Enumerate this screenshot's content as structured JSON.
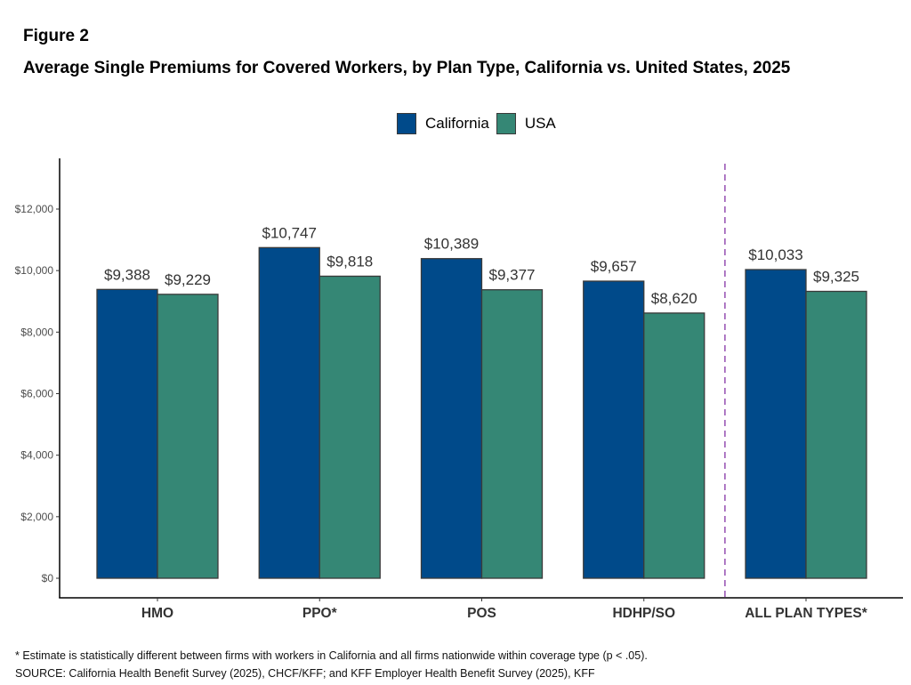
{
  "figure_label": "Figure 2",
  "title": "Average Single Premiums for Covered Workers, by Plan Type, California vs. United States, 2025",
  "footnote": "* Estimate is statistically different between firms with workers in California and all firms nationwide within coverage type (p < .05).",
  "source": "SOURCE: California Health Benefit Survey (2025), CHCF/KFF; and KFF Employer Health Benefit Survey (2025), KFF",
  "chart_data": {
    "type": "bar",
    "title": "Average Single Premiums for Covered Workers, by Plan Type, California vs. United States, 2025",
    "xlabel": "",
    "ylabel": "",
    "categories": [
      "HMO",
      "PPO*",
      "POS",
      "HDHP/SO",
      "ALL PLAN TYPES*"
    ],
    "series": [
      {
        "name": "California",
        "color": "#004A8A",
        "values": [
          9388,
          10747,
          10389,
          9657,
          10033
        ],
        "labels": [
          "$9,388",
          "$10,747",
          "$10,389",
          "$9,657",
          "$10,033"
        ]
      },
      {
        "name": "USA",
        "color": "#358775",
        "values": [
          9229,
          9818,
          9377,
          8620,
          9325
        ],
        "labels": [
          "$9,229",
          "$9,818",
          "$9,377",
          "$8,620",
          "$9,325"
        ]
      }
    ],
    "ylim": [
      0,
      13500
    ],
    "yticks": [
      0,
      2000,
      4000,
      6000,
      8000,
      10000,
      12000
    ],
    "ytick_labels": [
      "$0",
      "$2,000",
      "$4,000",
      "$6,000",
      "$8,000",
      "$10,000",
      "$12,000"
    ],
    "grid": false,
    "legend_position": "top-center",
    "separator": {
      "type": "dashed-vertical",
      "between": [
        "HDHP/SO",
        "ALL PLAN TYPES*"
      ],
      "color": "#9B59B6"
    }
  }
}
